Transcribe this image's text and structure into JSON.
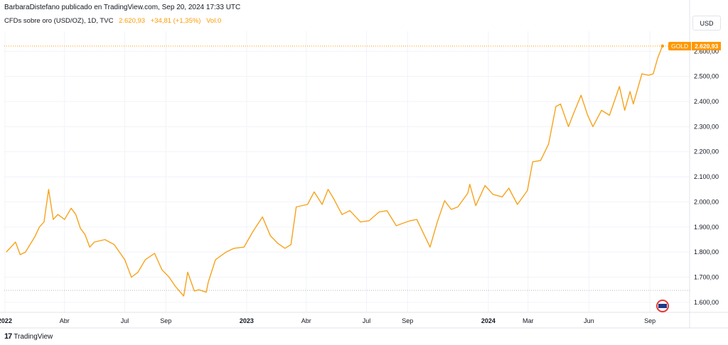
{
  "header": {
    "published": "BarbaraDistefano publicado en TradingView.com, Sep 20, 2024 17:33 UTC"
  },
  "symbol": {
    "name": "CFDs sobre oro (USD/OZ), 1D, TVC",
    "price": "2.620,93",
    "change": "+34,81 (+1,35%)",
    "volume": "Vol.0"
  },
  "currency_button": "USD",
  "badge": {
    "name": "GOLD",
    "price": "2.620,93"
  },
  "footer": {
    "brand": "TradingView"
  },
  "colors": {
    "line": "#f7a21b",
    "accent": "#ff9800",
    "grid": "#f0f3fa"
  },
  "chart_data": {
    "type": "line",
    "title": "",
    "xlabel": "",
    "ylabel": "",
    "ylim": [
      1560,
      2680
    ],
    "y_ticks": [
      "1.600,00",
      "1.700,00",
      "1.800,00",
      "1.900,00",
      "2.000,00",
      "2.100,00",
      "2.200,00",
      "2.300,00",
      "2.400,00",
      "2.500,00",
      "2.600,00"
    ],
    "x_ticks": [
      "2022",
      "Abr",
      "Jul",
      "Sep",
      "2023",
      "Abr",
      "Jul",
      "Sep",
      "2024",
      "Mar",
      "Jun",
      "Sep"
    ],
    "grid": true,
    "series": [
      {
        "x": [
          "2022-01-03",
          "2022-01-10",
          "2022-01-17",
          "2022-01-24",
          "2022-02-01",
          "2022-02-08",
          "2022-02-15",
          "2022-02-22",
          "2022-03-01",
          "2022-03-08",
          "2022-03-15",
          "2022-03-22",
          "2022-04-01",
          "2022-04-11",
          "2022-04-18",
          "2022-04-25",
          "2022-05-02",
          "2022-05-09",
          "2022-05-16",
          "2022-06-01",
          "2022-06-15",
          "2022-07-01",
          "2022-07-11",
          "2022-07-21",
          "2022-08-01",
          "2022-08-15",
          "2022-08-26",
          "2022-09-06",
          "2022-09-15",
          "2022-09-28",
          "2022-10-04",
          "2022-10-14",
          "2022-10-21",
          "2022-11-01",
          "2022-11-04",
          "2022-11-15",
          "2022-12-01",
          "2022-12-13",
          "2022-12-28",
          "2023-01-10",
          "2023-01-25",
          "2023-02-06",
          "2023-02-17",
          "2023-02-28",
          "2023-03-09",
          "2023-03-17",
          "2023-04-03",
          "2023-04-13",
          "2023-04-25",
          "2023-05-04",
          "2023-05-12",
          "2023-05-25",
          "2023-06-06",
          "2023-06-22",
          "2023-07-05",
          "2023-07-20",
          "2023-08-01",
          "2023-08-15",
          "2023-08-25",
          "2023-09-05",
          "2023-09-15",
          "2023-10-05",
          "2023-10-16",
          "2023-10-27",
          "2023-11-06",
          "2023-11-16",
          "2023-12-01",
          "2023-12-04",
          "2023-12-13",
          "2023-12-27",
          "2024-01-08",
          "2024-01-22",
          "2024-02-01",
          "2024-02-14",
          "2024-02-29",
          "2024-03-08",
          "2024-03-20",
          "2024-04-01",
          "2024-04-12",
          "2024-04-19",
          "2024-05-01",
          "2024-05-10",
          "2024-05-20",
          "2024-05-30",
          "2024-06-07",
          "2024-06-20",
          "2024-07-02",
          "2024-07-17",
          "2024-07-25",
          "2024-08-02",
          "2024-08-07",
          "2024-08-20",
          "2024-08-30",
          "2024-09-06",
          "2024-09-13",
          "2024-09-20"
        ],
        "values": [
          1800,
          1820,
          1840,
          1790,
          1800,
          1830,
          1860,
          1900,
          1920,
          2050,
          1930,
          1950,
          1930,
          1975,
          1950,
          1895,
          1870,
          1820,
          1840,
          1850,
          1830,
          1770,
          1700,
          1720,
          1770,
          1795,
          1730,
          1700,
          1665,
          1625,
          1720,
          1645,
          1650,
          1640,
          1680,
          1770,
          1800,
          1815,
          1820,
          1880,
          1940,
          1865,
          1835,
          1815,
          1830,
          1980,
          1990,
          2040,
          1990,
          2050,
          2015,
          1950,
          1965,
          1920,
          1925,
          1960,
          1965,
          1905,
          1915,
          1925,
          1930,
          1820,
          1920,
          2005,
          1970,
          1980,
          2035,
          2070,
          1985,
          2065,
          2030,
          2020,
          2055,
          1990,
          2045,
          2160,
          2165,
          2230,
          2380,
          2390,
          2300,
          2360,
          2425,
          2345,
          2300,
          2365,
          2345,
          2460,
          2365,
          2440,
          2390,
          2510,
          2505,
          2510,
          2575,
          2621
        ]
      }
    ]
  }
}
